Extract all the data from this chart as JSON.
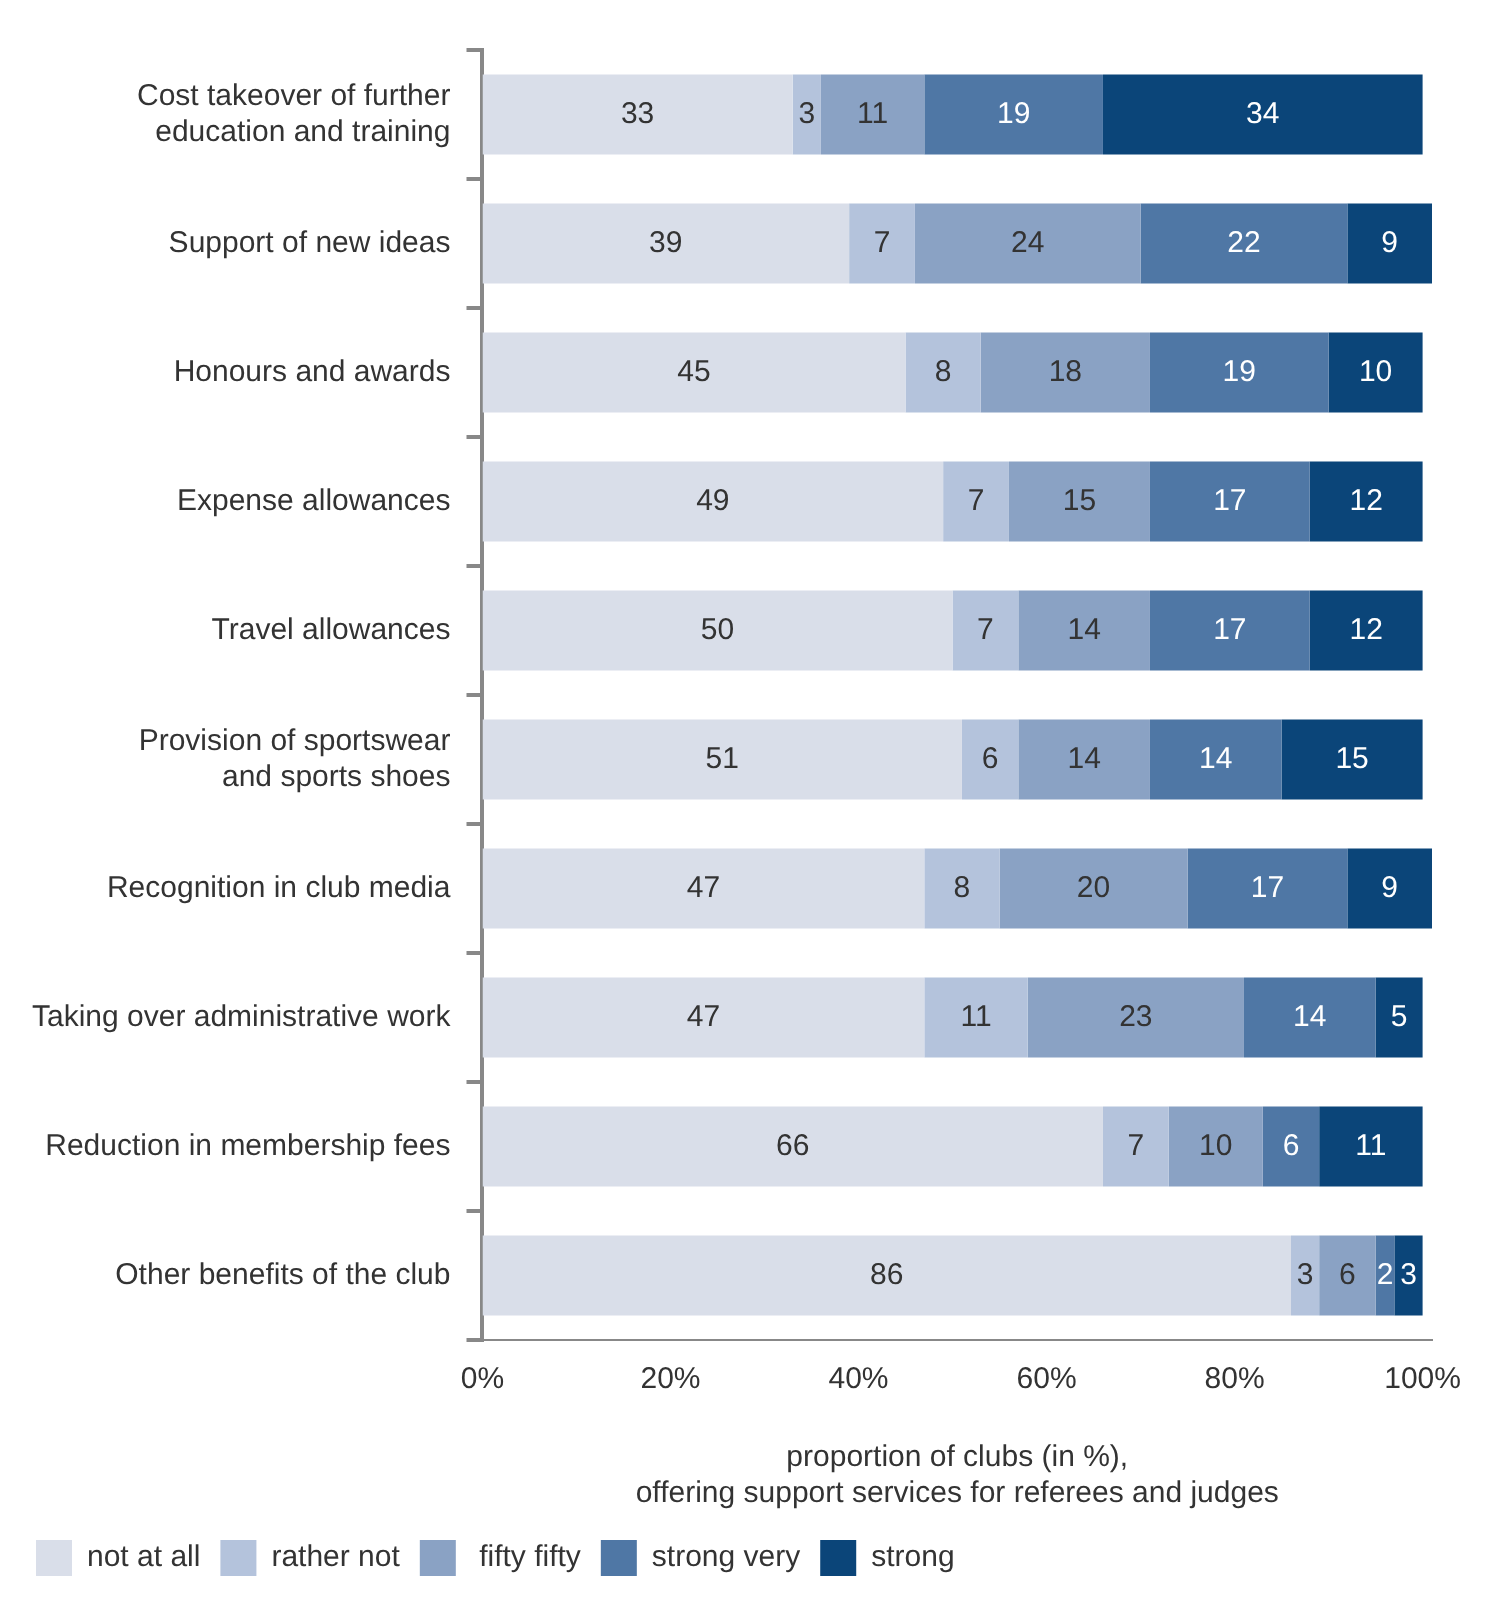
{
  "chart_data": {
    "type": "bar",
    "orientation": "horizontal",
    "stacked": true,
    "data_labels": true,
    "grid": false,
    "legend": "bottom left",
    "xlabel": "proportion of clubs (in %),\noffering support services for referees and judges",
    "categories": [
      "Cost takeover of further\neducation and training",
      "Support of new ideas",
      "Honours and awards",
      "Expense allowances",
      "Travel allowances",
      "Provision of sportswear\nand sports shoes",
      "Recognition in club media",
      "Taking over administrative work",
      "Reduction in membership fees",
      "Other benefits of the club"
    ],
    "xlim": [
      0,
      101
    ],
    "xticks": [
      {
        "value": 0,
        "label": "0%"
      },
      {
        "value": 20,
        "label": "20%"
      },
      {
        "value": 40,
        "label": "40%"
      },
      {
        "value": 60,
        "label": "60%"
      },
      {
        "value": 80,
        "label": "80%"
      },
      {
        "value": 100,
        "label": "100%"
      }
    ],
    "series": [
      {
        "name": "not at all",
        "color": "#d9dee9",
        "values": [
          33,
          39,
          45,
          49,
          50,
          51,
          47,
          47,
          66,
          86
        ]
      },
      {
        "name": "rather not",
        "color": "#b4c3dc",
        "values": [
          3,
          7,
          8,
          7,
          7,
          6,
          8,
          11,
          7,
          3
        ]
      },
      {
        "name": " fifty fifty",
        "color": "#8aa2c4",
        "values": [
          11,
          24,
          18,
          15,
          14,
          14,
          20,
          23,
          10,
          6
        ]
      },
      {
        "name": "strong very",
        "color": "#4f77a5",
        "values": [
          19,
          22,
          19,
          17,
          17,
          14,
          17,
          14,
          6,
          2
        ]
      },
      {
        "name": "strong",
        "color": "#0b4579",
        "values": [
          34,
          9,
          10,
          12,
          12,
          15,
          9,
          5,
          11,
          3
        ]
      }
    ]
  }
}
